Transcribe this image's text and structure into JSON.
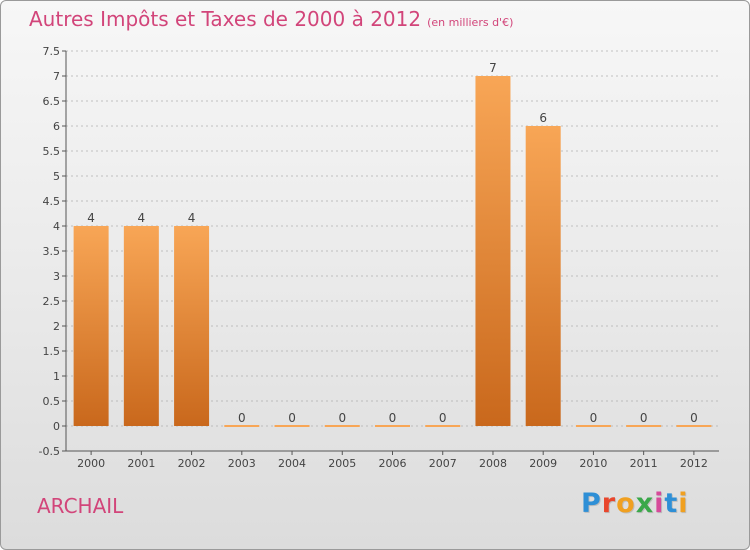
{
  "header": {
    "title": "Autres Impôts et Taxes de 2000 à 2012",
    "unit": "(en milliers d'€)"
  },
  "footer": {
    "commune": "ARCHAIL",
    "logo": {
      "letters": [
        "P",
        "r",
        "o",
        "x",
        "i",
        "t",
        "i"
      ],
      "colors": [
        "#2e8fd6",
        "#e8462c",
        "#f0a020",
        "#3aa84a",
        "#d64a9a",
        "#2e8fd6",
        "#f0a020"
      ]
    }
  },
  "colors": {
    "bar_top": "#f8a656",
    "bar_bottom": "#c9681c",
    "grid": "#b0b0b0",
    "axis": "#555555",
    "text": "#444444",
    "title": "#d2457a"
  },
  "chart_data": {
    "type": "bar",
    "categories": [
      "2000",
      "2001",
      "2002",
      "2003",
      "2004",
      "2005",
      "2006",
      "2007",
      "2008",
      "2009",
      "2010",
      "2011",
      "2012"
    ],
    "values": [
      4,
      4,
      4,
      0,
      0,
      0,
      0,
      0,
      7,
      6,
      0,
      0,
      0
    ],
    "data_labels": [
      "4",
      "4",
      "4",
      "0",
      "0",
      "0",
      "0",
      "0",
      "7",
      "6",
      "0",
      "0",
      "0"
    ],
    "yticks": [
      "-0.5",
      "0",
      "0.5",
      "1",
      "1.5",
      "2",
      "2.5",
      "3",
      "3.5",
      "4",
      "4.5",
      "5",
      "5.5",
      "6",
      "6.5",
      "7",
      "7.5"
    ],
    "ylim": [
      -0.5,
      7.5
    ],
    "grid": "horizontal dashed"
  }
}
